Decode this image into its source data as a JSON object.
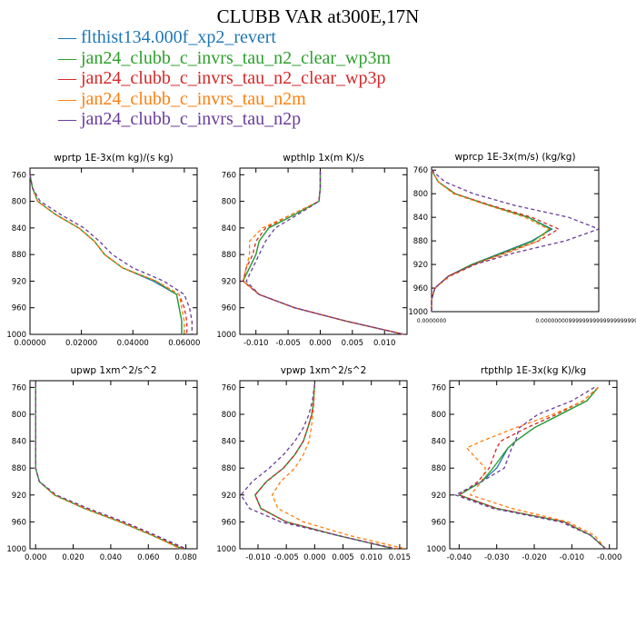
{
  "figure_title": "CLUBB VAR at300E,17N",
  "legend": [
    {
      "label": "flthist134.000f_xp2_revert",
      "color": "#1f77b4",
      "dash": "solid"
    },
    {
      "label": "jan24_clubb_c_invrs_tau_n2_clear_wp3m",
      "color": "#2ca02c",
      "dash": "solid"
    },
    {
      "label": "jan24_clubb_c_invrs_tau_n2_clear_wp3p",
      "color": "#d62728",
      "dash": "dashed"
    },
    {
      "label": "jan24_clubb_c_invrs_tau_n2m",
      "color": "#ff7f0e",
      "dash": "dashed"
    },
    {
      "label": "jan24_clubb_c_invrs_tau_n2p",
      "color": "#6a3d9a",
      "dash": "dashed"
    }
  ],
  "chart_data": [
    {
      "type": "line",
      "title": "wprtp  1E-3x(m kg)/(s kg)",
      "xlim": [
        0,
        0.065
      ],
      "xticks": [
        "0.00000",
        "0.02000",
        "0.04000",
        "0.06000"
      ],
      "xtick_values": [
        0,
        0.02,
        0.04,
        0.06
      ],
      "ylim": [
        1000,
        750
      ],
      "yticks": [
        "760",
        "800",
        "840",
        "880",
        "920",
        "960",
        "1000"
      ],
      "ytick_values": [
        760,
        800,
        840,
        880,
        "920",
        960,
        1000
      ],
      "y": [
        760,
        780,
        800,
        820,
        840,
        860,
        880,
        900,
        920,
        940,
        960,
        980,
        1000
      ],
      "series": [
        {
          "values": [
            0.0,
            0.001,
            0.003,
            0.01,
            0.019,
            0.025,
            0.029,
            0.036,
            0.048,
            0.057,
            0.058,
            0.059,
            0.059
          ]
        },
        {
          "values": [
            0.0,
            0.001,
            0.003,
            0.01,
            0.019,
            0.025,
            0.029,
            0.036,
            0.049,
            0.057,
            0.058,
            0.059,
            0.059
          ]
        },
        {
          "values": [
            0.0,
            0.001,
            0.003,
            0.01,
            0.019,
            0.025,
            0.029,
            0.036,
            0.049,
            0.058,
            0.06,
            0.061,
            0.061
          ]
        },
        {
          "values": [
            0.0,
            0.001,
            0.003,
            0.01,
            0.019,
            0.025,
            0.029,
            0.036,
            0.049,
            0.058,
            0.059,
            0.06,
            0.06
          ]
        },
        {
          "values": [
            0.0,
            0.001,
            0.004,
            0.012,
            0.021,
            0.027,
            0.032,
            0.04,
            0.052,
            0.06,
            0.062,
            0.063,
            0.063
          ]
        }
      ]
    },
    {
      "type": "line",
      "title": "wpthlp  1x(m K)/s",
      "xlim": [
        -0.0125,
        0.0135
      ],
      "xticks": [
        "-0.010",
        "-0.005",
        "0.000",
        "0.005",
        "0.010"
      ],
      "xtick_values": [
        -0.01,
        -0.005,
        0,
        0.005,
        0.01
      ],
      "ylim": [
        1000,
        750
      ],
      "yticks": [
        "760",
        "800",
        "840",
        "880",
        "920",
        "960",
        "1000"
      ],
      "ytick_values": [
        760,
        800,
        840,
        880,
        920,
        960,
        1000
      ],
      "y": [
        755,
        780,
        800,
        820,
        840,
        860,
        880,
        900,
        920,
        940,
        960,
        980,
        1000
      ],
      "series": [
        {
          "values": [
            0.0,
            0.0,
            -0.0002,
            -0.004,
            -0.008,
            -0.0095,
            -0.01,
            -0.011,
            -0.012,
            -0.0095,
            -0.004,
            0.004,
            0.013
          ]
        },
        {
          "values": [
            0.0,
            0.0,
            -0.0002,
            -0.004,
            -0.008,
            -0.0095,
            -0.01,
            -0.011,
            -0.012,
            -0.0095,
            -0.004,
            0.004,
            0.013
          ]
        },
        {
          "values": [
            0.0,
            0.0,
            -0.0002,
            -0.0045,
            -0.0085,
            -0.01,
            -0.0105,
            -0.0115,
            -0.012,
            -0.0095,
            -0.004,
            0.004,
            0.013
          ]
        },
        {
          "values": [
            0.0,
            0.0,
            -0.0002,
            -0.0045,
            -0.009,
            -0.011,
            -0.011,
            -0.0115,
            -0.012,
            -0.0095,
            -0.004,
            0.004,
            0.013
          ]
        },
        {
          "values": [
            0.0,
            0.0,
            -0.0002,
            -0.0035,
            -0.007,
            -0.0085,
            -0.0095,
            -0.0105,
            -0.0115,
            -0.0095,
            -0.004,
            0.004,
            0.013
          ]
        }
      ]
    },
    {
      "type": "line",
      "title": "wprcp  1E-3x(m/s) (kg/kg)",
      "xlim": [
        0,
        1
      ],
      "xticks": [
        "0.0000000",
        "0.00000000999999999999999999999999999"
      ],
      "xtick_values": [
        0,
        1
      ],
      "ylim": [
        1000,
        755
      ],
      "yticks": [
        "760",
        "800",
        "840",
        "880",
        "920",
        "960",
        "1000"
      ],
      "ytick_values": [
        760,
        800,
        840,
        880,
        920,
        960,
        1000
      ],
      "y": [
        760,
        780,
        800,
        820,
        840,
        860,
        880,
        900,
        920,
        940,
        960,
        980,
        1000
      ],
      "series": [
        {
          "values": [
            0.0,
            0.04,
            0.14,
            0.35,
            0.58,
            0.72,
            0.6,
            0.42,
            0.24,
            0.1,
            0.02,
            0.0,
            0.0
          ]
        },
        {
          "values": [
            0.0,
            0.04,
            0.14,
            0.35,
            0.58,
            0.71,
            0.61,
            0.43,
            0.24,
            0.1,
            0.02,
            0.0,
            0.0
          ]
        },
        {
          "values": [
            0.0,
            0.04,
            0.14,
            0.36,
            0.6,
            0.76,
            0.64,
            0.44,
            0.25,
            0.1,
            0.02,
            0.0,
            0.0
          ]
        },
        {
          "values": [
            0.0,
            0.04,
            0.13,
            0.34,
            0.56,
            0.7,
            0.64,
            0.46,
            0.26,
            0.11,
            0.02,
            0.0,
            0.0
          ]
        },
        {
          "values": [
            0.0,
            0.08,
            0.25,
            0.5,
            0.82,
            1.0,
            0.8,
            0.5,
            0.26,
            0.1,
            0.02,
            0.0,
            0.0
          ]
        }
      ]
    },
    {
      "type": "line",
      "title": "upwp  1xm^2/s^2",
      "xlim": [
        -0.003,
        0.086
      ],
      "xticks": [
        "0.000",
        "0.020",
        "0.040",
        "0.060",
        "0.080"
      ],
      "xtick_values": [
        0,
        0.02,
        0.04,
        0.06,
        0.08
      ],
      "ylim": [
        1000,
        750
      ],
      "yticks": [
        "760",
        "800",
        "840",
        "880",
        "920",
        "960",
        "1000"
      ],
      "ytick_values": [
        760,
        800,
        840,
        880,
        920,
        960,
        1000
      ],
      "y": [
        755,
        780,
        800,
        820,
        840,
        860,
        880,
        900,
        920,
        940,
        960,
        980,
        1000
      ],
      "series": [
        {
          "values": [
            0.0,
            0.0,
            0.0,
            0.0,
            0.0,
            0.0,
            0.0,
            0.002,
            0.01,
            0.026,
            0.045,
            0.062,
            0.078
          ]
        },
        {
          "values": [
            0.0,
            0.0,
            0.0,
            0.0,
            0.0,
            0.0,
            0.0,
            0.002,
            0.01,
            0.026,
            0.045,
            0.062,
            0.078
          ]
        },
        {
          "values": [
            0.0,
            0.0,
            0.0,
            0.0,
            0.0,
            0.0,
            0.0,
            0.002,
            0.01,
            0.027,
            0.046,
            0.063,
            0.079
          ]
        },
        {
          "values": [
            0.0,
            0.0,
            0.0,
            0.0,
            0.0,
            0.0,
            0.0,
            0.002,
            0.01,
            0.026,
            0.045,
            0.062,
            0.077
          ]
        },
        {
          "values": [
            0.0,
            0.0,
            0.0,
            0.0,
            0.0,
            0.0,
            0.0,
            0.002,
            0.011,
            0.028,
            0.047,
            0.064,
            0.08
          ]
        }
      ]
    },
    {
      "type": "line",
      "title": "vpwp  1xm^2/s^2",
      "xlim": [
        -0.0132,
        0.0163
      ],
      "xticks": [
        "-0.010",
        "-0.005",
        "0.000",
        "0.005",
        "0.010",
        "0.015"
      ],
      "xtick_values": [
        -0.01,
        -0.005,
        0,
        0.005,
        0.01,
        0.015
      ],
      "ylim": [
        1000,
        750
      ],
      "yticks": [
        "760",
        "800",
        "840",
        "880",
        "920",
        "960",
        "1000"
      ],
      "ytick_values": [
        760,
        800,
        840,
        880,
        920,
        960,
        1000
      ],
      "y": [
        755,
        780,
        800,
        820,
        840,
        860,
        880,
        900,
        920,
        940,
        960,
        980,
        1000
      ],
      "series": [
        {
          "values": [
            0.0,
            -0.0002,
            -0.0005,
            -0.0012,
            -0.002,
            -0.0035,
            -0.0055,
            -0.0085,
            -0.0105,
            -0.0095,
            -0.005,
            0.004,
            0.014
          ]
        },
        {
          "values": [
            0.0,
            -0.0002,
            -0.0005,
            -0.0012,
            -0.002,
            -0.0035,
            -0.0055,
            -0.0085,
            -0.0105,
            -0.0095,
            -0.005,
            0.004,
            0.014
          ]
        },
        {
          "values": [
            0.0,
            -0.0002,
            -0.0005,
            -0.0012,
            -0.002,
            -0.0035,
            -0.0055,
            -0.0085,
            -0.0105,
            -0.0095,
            -0.005,
            0.004,
            0.0145
          ]
        },
        {
          "values": [
            0.0,
            -0.0001,
            -0.0003,
            -0.0006,
            -0.001,
            -0.002,
            -0.0035,
            -0.006,
            -0.0075,
            -0.0065,
            -0.002,
            0.006,
            0.016
          ]
        },
        {
          "values": [
            0.0,
            -0.0004,
            -0.001,
            -0.002,
            -0.0035,
            -0.0055,
            -0.008,
            -0.011,
            -0.013,
            -0.0115,
            -0.006,
            0.004,
            0.014
          ]
        }
      ]
    },
    {
      "type": "line",
      "title": "rtpthlp  1E-3x(kg K)/kg",
      "xlim": [
        -0.0425,
        0.002
      ],
      "xticks": [
        "-0.040",
        "-0.030",
        "-0.020",
        "-0.010",
        "-0.000"
      ],
      "xtick_values": [
        -0.04,
        -0.03,
        -0.02,
        -0.01,
        0
      ],
      "ylim": [
        1000,
        750
      ],
      "yticks": [
        "760",
        "800",
        "840",
        "880",
        "920",
        "960",
        "1000"
      ],
      "ytick_values": [
        760,
        800,
        840,
        880,
        920,
        960,
        1000
      ],
      "y": [
        760,
        780,
        800,
        820,
        840,
        850,
        880,
        900,
        920,
        940,
        960,
        980,
        1000
      ],
      "series": [
        {
          "values": [
            -0.003,
            -0.006,
            -0.013,
            -0.02,
            -0.025,
            -0.027,
            -0.03,
            -0.034,
            -0.04,
            -0.03,
            -0.012,
            -0.005,
            -0.001
          ]
        },
        {
          "values": [
            -0.003,
            -0.006,
            -0.013,
            -0.02,
            -0.025,
            -0.027,
            -0.031,
            -0.034,
            -0.04,
            -0.03,
            -0.012,
            -0.005,
            -0.001
          ]
        },
        {
          "values": [
            -0.003,
            -0.007,
            -0.014,
            -0.022,
            -0.029,
            -0.03,
            -0.032,
            -0.035,
            -0.04,
            -0.03,
            -0.012,
            -0.005,
            -0.001
          ]
        },
        {
          "values": [
            -0.003,
            -0.007,
            -0.015,
            -0.025,
            -0.034,
            -0.038,
            -0.033,
            -0.034,
            -0.037,
            -0.026,
            -0.011,
            -0.004,
            -0.001
          ]
        },
        {
          "values": [
            -0.004,
            -0.01,
            -0.019,
            -0.024,
            -0.025,
            -0.026,
            -0.028,
            -0.034,
            -0.041,
            -0.031,
            -0.013,
            -0.005,
            -0.001
          ]
        }
      ]
    }
  ]
}
